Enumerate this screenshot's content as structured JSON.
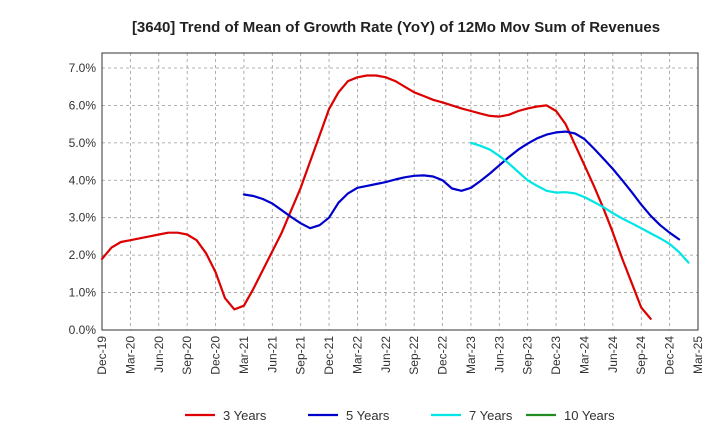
{
  "chart_data": {
    "type": "line",
    "title": "[3640]  Trend of Mean of Growth Rate (YoY) of 12Mo Mov Sum of Revenues",
    "xlabel": "",
    "ylabel": "",
    "x_ticks": [
      "Dec-19",
      "Mar-20",
      "Jun-20",
      "Sep-20",
      "Dec-20",
      "Mar-21",
      "Jun-21",
      "Sep-21",
      "Dec-21",
      "Mar-22",
      "Jun-22",
      "Sep-22",
      "Dec-22",
      "Mar-23",
      "Jun-23",
      "Sep-23",
      "Dec-23",
      "Mar-24",
      "Jun-24",
      "Sep-24",
      "Dec-24",
      "Mar-25"
    ],
    "y_ticks": [
      "0.0%",
      "1.0%",
      "2.0%",
      "3.0%",
      "4.0%",
      "5.0%",
      "6.0%",
      "7.0%"
    ],
    "ylim": [
      0,
      7.4
    ],
    "x_range_months": [
      0,
      63
    ],
    "grid": true,
    "legend_position": "bottom",
    "series": [
      {
        "name": "3 Years",
        "color": "#dd0000",
        "start_month": 0,
        "values": [
          1.9,
          2.2,
          2.35,
          2.4,
          2.45,
          2.5,
          2.55,
          2.6,
          2.6,
          2.55,
          2.4,
          2.05,
          1.55,
          0.85,
          0.55,
          0.65,
          1.1,
          1.6,
          2.1,
          2.6,
          3.2,
          3.8,
          4.5,
          5.2,
          5.9,
          6.35,
          6.65,
          6.75,
          6.8,
          6.8,
          6.75,
          6.65,
          6.5,
          6.35,
          6.25,
          6.15,
          6.08,
          6.0,
          5.92,
          5.85,
          5.78,
          5.72,
          5.7,
          5.75,
          5.85,
          5.92,
          5.97,
          6.0,
          5.85,
          5.5,
          4.95,
          4.4,
          3.85,
          3.25,
          2.6,
          1.9,
          1.25,
          0.6,
          0.3
        ]
      },
      {
        "name": "5 Years",
        "color": "#0000cc",
        "start_month": 15,
        "values": [
          3.62,
          3.58,
          3.5,
          3.38,
          3.2,
          3.02,
          2.85,
          2.72,
          2.8,
          3.0,
          3.4,
          3.65,
          3.8,
          3.85,
          3.9,
          3.95,
          4.02,
          4.08,
          4.12,
          4.13,
          4.1,
          4.0,
          3.78,
          3.72,
          3.8,
          3.98,
          4.18,
          4.4,
          4.62,
          4.82,
          4.98,
          5.12,
          5.22,
          5.28,
          5.3,
          5.25,
          5.1,
          4.85,
          4.58,
          4.3,
          4.0,
          3.68,
          3.35,
          3.05,
          2.8,
          2.6,
          2.42
        ]
      },
      {
        "name": "7 Years",
        "color": "#00e5e5",
        "start_month": 39,
        "values": [
          5.0,
          4.92,
          4.82,
          4.65,
          4.45,
          4.22,
          4.0,
          3.85,
          3.72,
          3.67,
          3.68,
          3.65,
          3.55,
          3.42,
          3.28,
          3.12,
          2.98,
          2.85,
          2.72,
          2.58,
          2.45,
          2.3,
          2.08,
          1.8
        ]
      },
      {
        "name": "10 Years",
        "color": "#228B22",
        "start_month": 0,
        "values": []
      }
    ]
  }
}
